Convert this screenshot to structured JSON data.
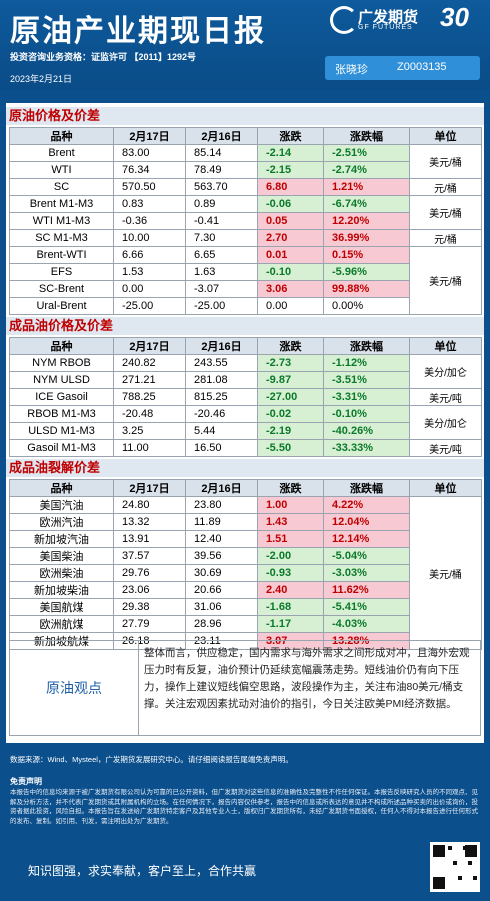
{
  "header": {
    "title": "原油产业期现日报",
    "logo_name": "广发期货",
    "logo_en": "GF FUTURES",
    "anniv": "30",
    "qualification": "投资咨询业务资格：证监许可 【2011】1292号",
    "date": "2023年2月21日"
  },
  "analyst": {
    "name": "张晓珍",
    "id": "Z0003135"
  },
  "sections": {
    "crude": {
      "title": "原油价格及价差"
    },
    "products": {
      "title": "成品油价格及价差"
    },
    "cracks": {
      "title": "成品油裂解价差"
    }
  },
  "cols": [
    "品种",
    "2月17日",
    "2月16日",
    "涨跌",
    "涨跌幅",
    "单位"
  ],
  "crude_rows": [
    {
      "name": "Brent",
      "d1": "83.00",
      "d2": "85.14",
      "chg": "-2.14",
      "pct": "-2.51%"
    },
    {
      "name": "WTI",
      "d1": "76.34",
      "d2": "78.49",
      "chg": "-2.15",
      "pct": "-2.74%"
    },
    {
      "name": "SC",
      "d1": "570.50",
      "d2": "563.70",
      "chg": "6.80",
      "pct": "1.21%"
    },
    {
      "name": "Brent  M1-M3",
      "d1": "0.83",
      "d2": "0.89",
      "chg": "-0.06",
      "pct": "-6.74%"
    },
    {
      "name": "WTI  M1-M3",
      "d1": "-0.36",
      "d2": "-0.41",
      "chg": "0.05",
      "pct": "12.20%"
    },
    {
      "name": "SC  M1-M3",
      "d1": "10.00",
      "d2": "7.30",
      "chg": "2.70",
      "pct": "36.99%"
    },
    {
      "name": "Brent-WTI",
      "d1": "6.66",
      "d2": "6.65",
      "chg": "0.01",
      "pct": "0.15%"
    },
    {
      "name": "EFS",
      "d1": "1.53",
      "d2": "1.63",
      "chg": "-0.10",
      "pct": "-5.96%"
    },
    {
      "name": "SC-Brent",
      "d1": "0.00",
      "d2": "-3.07",
      "chg": "3.06",
      "pct": "99.88%"
    },
    {
      "name": "Ural-Brent",
      "d1": "-25.00",
      "d2": "-25.00",
      "chg": "0.00",
      "pct": "0.00%"
    }
  ],
  "crude_units": [
    "美元/桶",
    "元/桶",
    "美元/桶",
    "元/桶",
    "美元/桶"
  ],
  "product_rows": [
    {
      "name": "NYM RBOB",
      "d1": "240.82",
      "d2": "243.55",
      "chg": "-2.73",
      "pct": "-1.12%"
    },
    {
      "name": "NYM ULSD",
      "d1": "271.21",
      "d2": "281.08",
      "chg": "-9.87",
      "pct": "-3.51%"
    },
    {
      "name": "ICE Gasoil",
      "d1": "788.25",
      "d2": "815.25",
      "chg": "-27.00",
      "pct": "-3.31%"
    },
    {
      "name": "RBOB  M1-M3",
      "d1": "-20.48",
      "d2": "-20.46",
      "chg": "-0.02",
      "pct": "-0.10%"
    },
    {
      "name": "ULSD  M1-M3",
      "d1": "3.25",
      "d2": "5.44",
      "chg": "-2.19",
      "pct": "-40.26%"
    },
    {
      "name": "Gasoil  M1-M3",
      "d1": "11.00",
      "d2": "16.50",
      "chg": "-5.50",
      "pct": "-33.33%"
    }
  ],
  "product_units": [
    "美分/加仑",
    "美元/吨",
    "美分/加仑",
    "美元/吨"
  ],
  "crack_rows": [
    {
      "name": "美国汽油",
      "d1": "24.80",
      "d2": "23.80",
      "chg": "1.00",
      "pct": "4.22%"
    },
    {
      "name": "欧洲汽油",
      "d1": "13.32",
      "d2": "11.89",
      "chg": "1.43",
      "pct": "12.04%"
    },
    {
      "name": "新加坡汽油",
      "d1": "13.91",
      "d2": "12.40",
      "chg": "1.51",
      "pct": "12.14%"
    },
    {
      "name": "美国柴油",
      "d1": "37.57",
      "d2": "39.56",
      "chg": "-2.00",
      "pct": "-5.04%"
    },
    {
      "name": "欧洲柴油",
      "d1": "29.76",
      "d2": "30.69",
      "chg": "-0.93",
      "pct": "-3.03%"
    },
    {
      "name": "新加坡柴油",
      "d1": "23.06",
      "d2": "20.66",
      "chg": "2.40",
      "pct": "11.62%"
    },
    {
      "name": "美国航煤",
      "d1": "29.38",
      "d2": "31.06",
      "chg": "-1.68",
      "pct": "-5.41%"
    },
    {
      "name": "欧洲航煤",
      "d1": "27.79",
      "d2": "28.96",
      "chg": "-1.17",
      "pct": "-4.03%"
    },
    {
      "name": "新加坡航煤",
      "d1": "26.18",
      "d2": "23.11",
      "chg": "3.07",
      "pct": "13.28%"
    }
  ],
  "crack_unit": "美元/桶",
  "view": {
    "label": "原油观点",
    "text": "整体而言，供应稳定，国内需求与海外需求之间形成对冲，且海外宏观压力时有反复，油价预计仍延续宽幅震荡走势。短线油价仍有向下压力，操作上建议短线偏空思路，波段操作为主，关注布油80美元/桶支撑。关注宏观因素扰动对油价的指引，今日关注欧美PMI经济数据。"
  },
  "footer": {
    "source": "数据来源：Wind、Mysteel，广发期货发展研究中心。请仔细阅读报告尾端免责声明。",
    "disclaimer_title": "免责声明",
    "disclaimer": "本报告中的信息均来源于被广发期货有限公司认为可靠的已公开资料，但广发期货对这些信息的准确性及完整性不作任何保证。本报告反映研究人员的不同观点、见解及分析方法，并不代表广发期货或其附属机构的立场。在任何情况下，报告内容仅供参考，报告中的信息或所表达的意见并不构成所述品种买卖的出价或询价，投资者据此投资，风险自担。本报告旨在发送给广发期货特定客户及其他专业人士，版权归广发期货所有，未经广发期货书面授权，任何人不得对本报告进行任何形式的发布、复制。如引用、刊发，需注明出处为广发期货。",
    "slogan": "知识图强，求实奉献，客户至上，合作共赢"
  }
}
